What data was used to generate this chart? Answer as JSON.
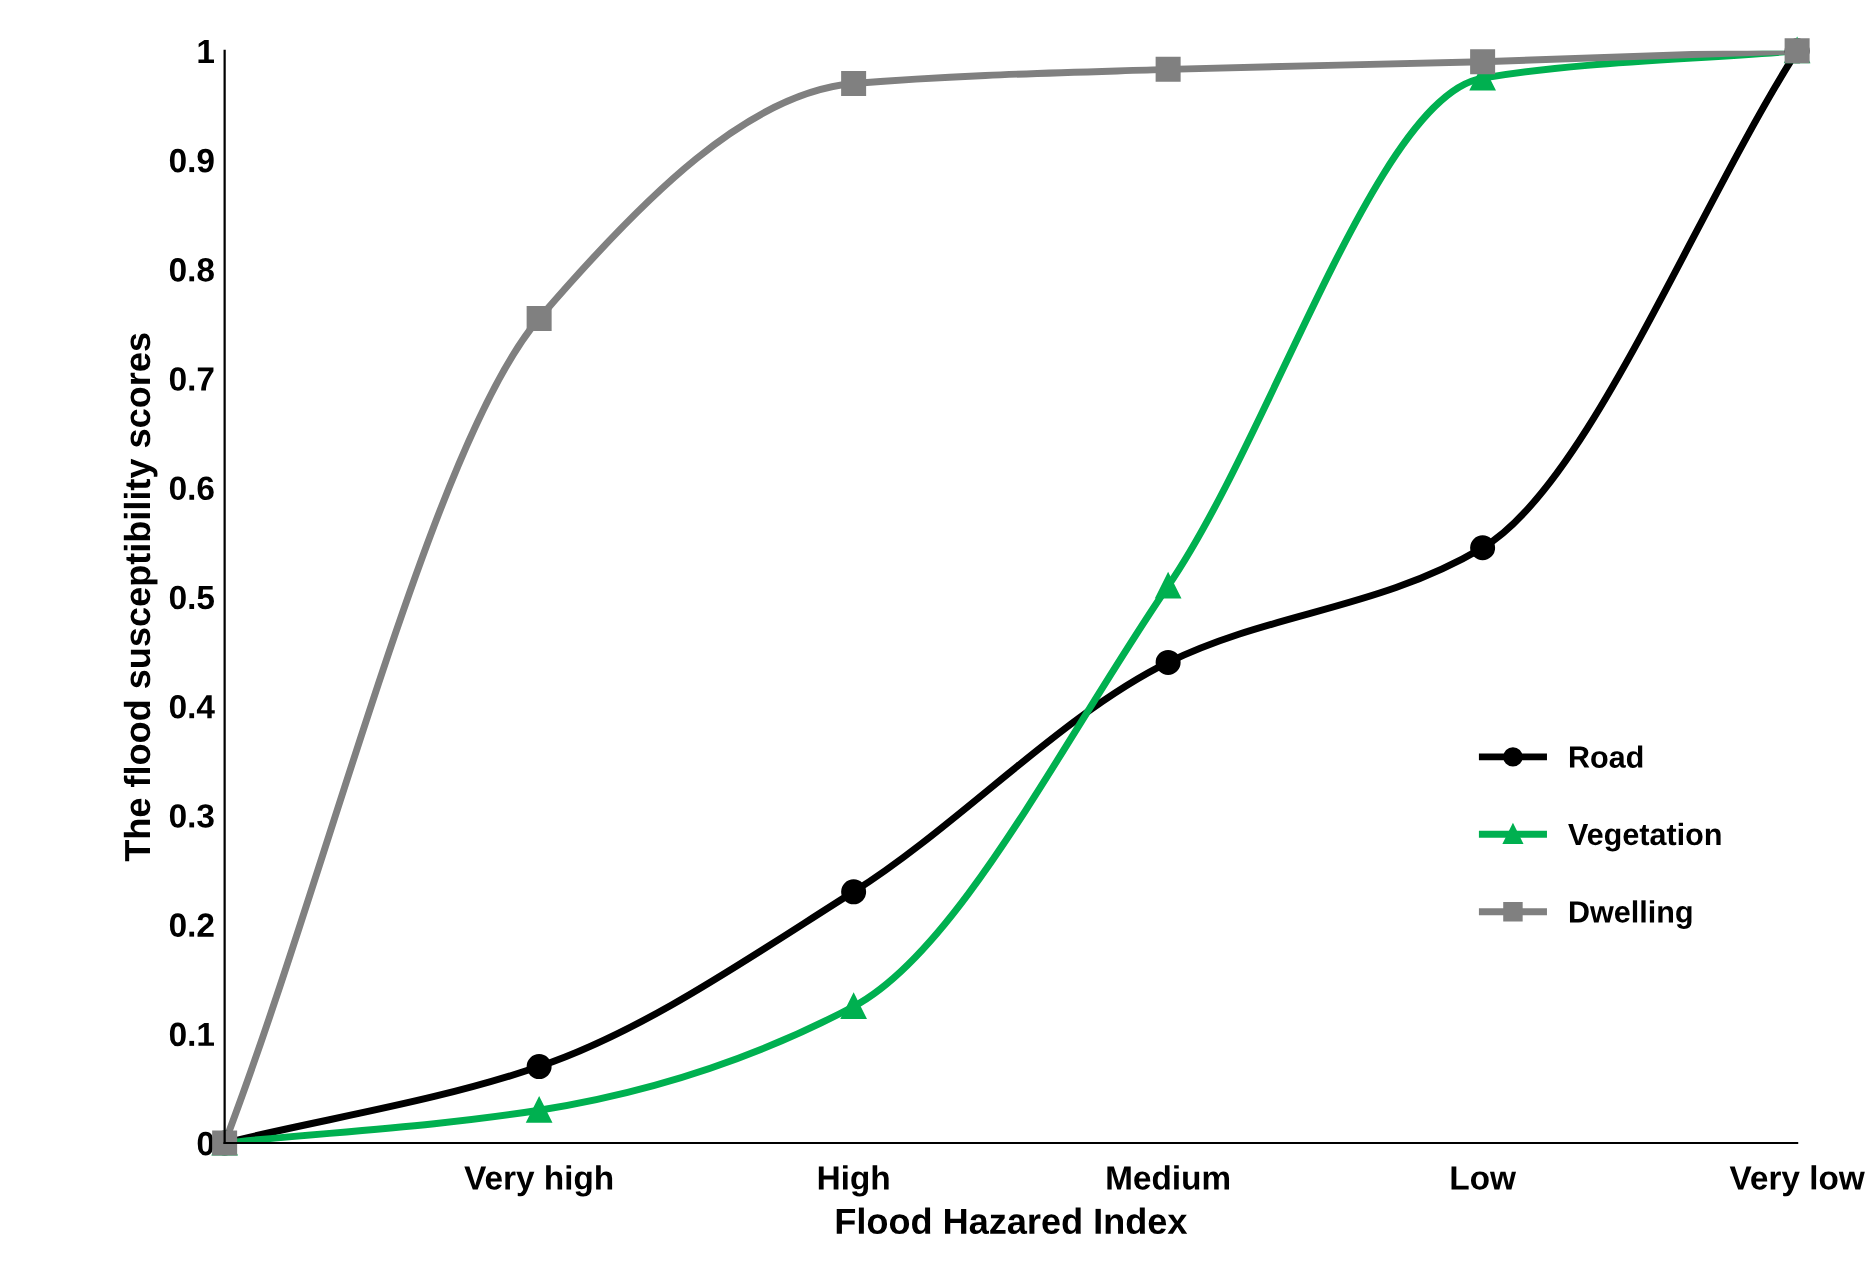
{
  "chart_data": {
    "type": "line",
    "xlabel": "Flood Hazared Index",
    "ylabel": "The flood susceptibility scores",
    "categories": [
      null,
      "Very high",
      "High",
      "Medium",
      "Low",
      "Very low"
    ],
    "series": [
      {
        "name": "Road",
        "color": "#000000",
        "marker": "circle",
        "values": [
          0,
          0.07,
          0.23,
          0.44,
          0.545,
          1.0
        ]
      },
      {
        "name": "Vegetation",
        "color": "#00b050",
        "marker": "triangle",
        "values": [
          0,
          0.03,
          0.125,
          0.51,
          0.975,
          1.0
        ]
      },
      {
        "name": "Dwelling",
        "color": "#808080",
        "marker": "square",
        "values": [
          0,
          0.755,
          0.97,
          0.983,
          0.99,
          1.0
        ]
      }
    ],
    "ylim": [
      0,
      1
    ],
    "yticks": [
      0,
      0.1,
      0.2,
      0.3,
      0.4,
      0.5,
      0.6,
      0.7,
      0.8,
      0.9,
      1
    ],
    "grid": false,
    "legend": "right",
    "line_style": "solid"
  }
}
